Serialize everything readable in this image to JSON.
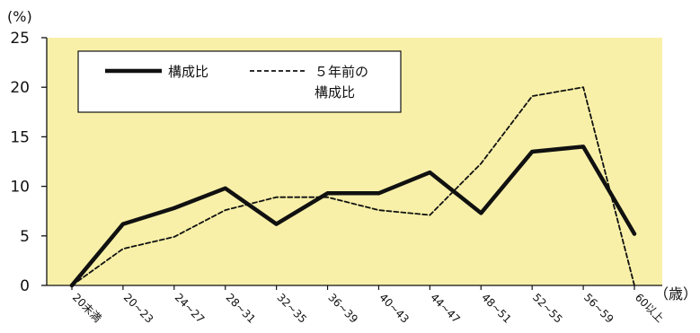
{
  "chart_data": {
    "type": "line",
    "ylabel_unit": "(%)",
    "xlabel_unit": "（歳）",
    "ylim": [
      0,
      25
    ],
    "yticks": [
      0,
      5,
      10,
      15,
      20,
      25
    ],
    "categories": [
      "20未満",
      "20~23",
      "24~27",
      "28~31",
      "32~35",
      "36~39",
      "40~43",
      "44~47",
      "48~51",
      "52~55",
      "56~59",
      "60以上"
    ],
    "series": [
      {
        "name": "構成比",
        "style": "solid-thick",
        "values": [
          0,
          6.2,
          7.8,
          9.8,
          6.2,
          9.3,
          9.3,
          11.4,
          7.3,
          13.5,
          14.0,
          5.2
        ]
      },
      {
        "name": "５年前の構成比",
        "name_lines": [
          "５年前の",
          "構成比"
        ],
        "style": "dashed",
        "values": [
          0,
          3.7,
          4.9,
          7.6,
          8.9,
          8.9,
          7.6,
          7.1,
          12.3,
          19.1,
          20.0,
          0
        ]
      }
    ],
    "grid": false,
    "legend_position": "top-left",
    "colors": {
      "plot_background": "#f8f0a8",
      "line": "#111111"
    }
  }
}
